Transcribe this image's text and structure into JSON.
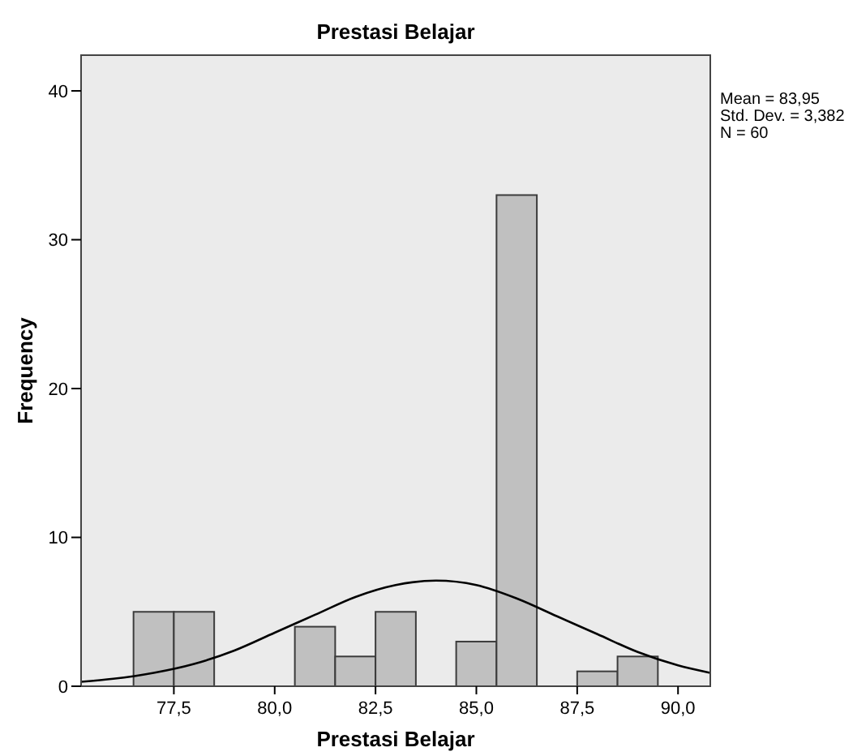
{
  "chart_data": {
    "type": "histogram",
    "title": "Prestasi Belajar",
    "xlabel": "Prestasi Belajar",
    "ylabel": "Frequency",
    "annotations": [
      "Mean = 83,95",
      "Std. Dev. = 3,382",
      "N = 60"
    ],
    "xlim": [
      75.2,
      90.8
    ],
    "ylim": [
      0,
      42.4
    ],
    "xticks": [
      {
        "value": 77.5,
        "label": "77,5"
      },
      {
        "value": 80,
        "label": "80,0"
      },
      {
        "value": 82.5,
        "label": "82,5"
      },
      {
        "value": 85,
        "label": "85,0"
      },
      {
        "value": 87.5,
        "label": "87,5"
      },
      {
        "value": 90,
        "label": "90,0"
      }
    ],
    "yticks": [
      0,
      10,
      20,
      30,
      40
    ],
    "series": [
      {
        "color": "#c0c0c0",
        "bins": [
          76.5,
          77.5,
          78.5,
          79.5,
          80.5,
          81.5,
          82.5,
          83.5,
          84.5,
          85.5,
          86.5,
          87.5,
          88.5,
          89.5
        ],
        "values": [
          5,
          5,
          0,
          0,
          4,
          2,
          5,
          0,
          3,
          33,
          0,
          1,
          2
        ]
      },
      {
        "type": "line",
        "color": "#000000",
        "x": [
          75.2,
          76,
          77,
          78,
          79,
          80,
          81,
          82,
          83,
          84,
          85,
          86,
          87,
          88,
          89,
          90,
          90.8
        ],
        "values": [
          0.3,
          0.5,
          0.9,
          1.5,
          2.4,
          3.6,
          4.8,
          6.0,
          6.8,
          7.1,
          6.8,
          5.9,
          4.7,
          3.5,
          2.3,
          1.4,
          0.9
        ]
      }
    ]
  }
}
